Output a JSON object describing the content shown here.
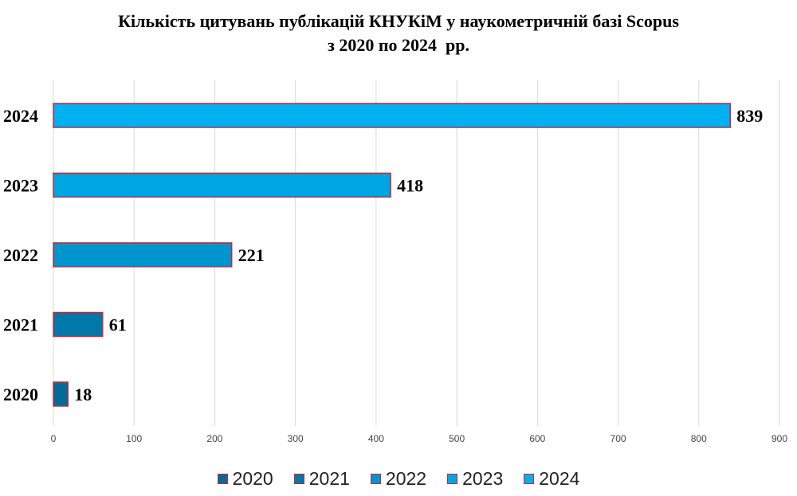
{
  "chart_data": {
    "type": "bar",
    "orientation": "horizontal",
    "title": [
      "Кількість цитувань публікацій КНУКіМ у наукометричній базі Scopus",
      "з 2020 по 2024  рр."
    ],
    "categories": [
      "2024",
      "2023",
      "2022",
      "2021",
      "2020"
    ],
    "values": [
      839,
      418,
      221,
      61,
      18
    ],
    "bar_colors": [
      "#00b0f0",
      "#00a6e2",
      "#0095cc",
      "#0078a8",
      "#046b97"
    ],
    "bar_border_color": "#c0283a",
    "xlim": [
      0,
      900
    ],
    "xticks": [
      0,
      100,
      200,
      300,
      400,
      500,
      600,
      700,
      800,
      900
    ],
    "grid": "vertical",
    "legend_position": "bottom",
    "legend": [
      {
        "label": "2020",
        "color": "#046b97"
      },
      {
        "label": "2021",
        "color": "#0078a8"
      },
      {
        "label": "2022",
        "color": "#0095cc"
      },
      {
        "label": "2023",
        "color": "#00a6e2"
      },
      {
        "label": "2024",
        "color": "#00b0f0"
      }
    ]
  }
}
